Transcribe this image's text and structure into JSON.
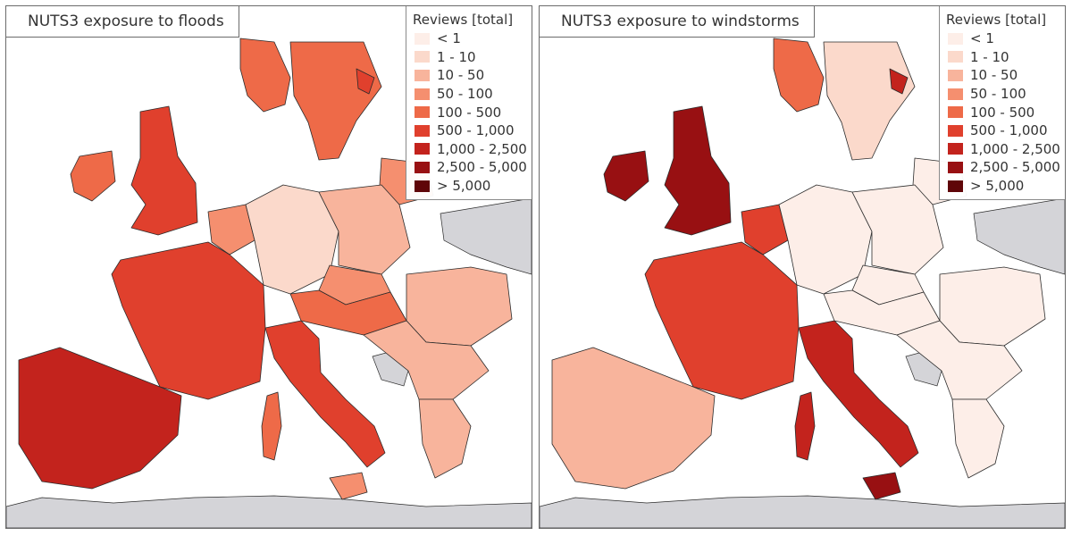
{
  "legend": {
    "title": "Reviews [total]",
    "classes": [
      {
        "label": "< 1",
        "color": "#fdeee8"
      },
      {
        "label": "1 - 10",
        "color": "#fbd9cb"
      },
      {
        "label": "10 - 50",
        "color": "#f8b49c"
      },
      {
        "label": "50 - 100",
        "color": "#f58f6f"
      },
      {
        "label": "100 - 500",
        "color": "#ee6a48"
      },
      {
        "label": "500 - 1,000",
        "color": "#e0402d"
      },
      {
        "label": "1,000 - 2,500",
        "color": "#c3231d"
      },
      {
        "label": "2,500 - 5,000",
        "color": "#981012"
      },
      {
        "label": "> 5,000",
        "color": "#5f0508"
      }
    ]
  },
  "colors": {
    "sea": "#ffffff",
    "non_eu_land": "#d4d4d8",
    "border": "#2b2b2b"
  },
  "maps": [
    {
      "title": "NUTS3 exposure to floods",
      "hazard": "floods",
      "region_classes": {
        "scandinavia": 4,
        "norway": 4,
        "iceland": 5,
        "britain": 5,
        "ireland": 4,
        "france": 5,
        "iberia": 6,
        "benelux": 3,
        "germany": 1,
        "poland": 2,
        "czechia": 3,
        "baltics": 3,
        "austria": 4,
        "italy": 5,
        "balkans": 2,
        "romania": 2,
        "greece": 2,
        "corsica_sardinia": 4,
        "sicily": 3
      }
    },
    {
      "title": "NUTS3 exposure to windstorms",
      "hazard": "windstorms",
      "region_classes": {
        "scandinavia": 1,
        "norway": 4,
        "iceland": 6,
        "britain": 7,
        "ireland": 7,
        "france": 5,
        "iberia": 2,
        "benelux": 5,
        "germany": 0,
        "poland": 0,
        "czechia": 0,
        "baltics": 0,
        "austria": 0,
        "italy": 6,
        "balkans": 0,
        "romania": 0,
        "greece": 0,
        "corsica_sardinia": 6,
        "sicily": 7
      }
    }
  ]
}
